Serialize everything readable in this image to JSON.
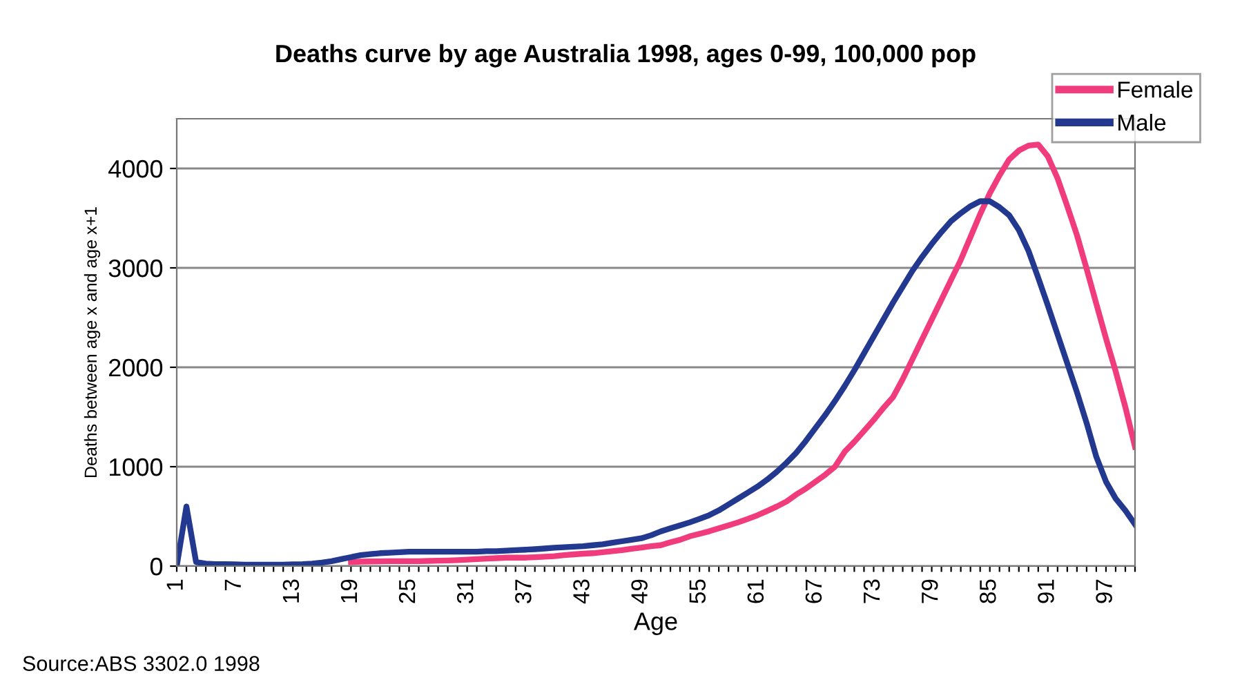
{
  "chart_data": {
    "type": "line",
    "title": "Deaths curve by age Australia 1998, ages 0-99, 100,000 pop",
    "xlabel": "Age",
    "ylabel": "Deaths between age x and age x+1",
    "categories": [
      "1",
      null,
      null,
      null,
      null,
      null,
      "7",
      null,
      null,
      null,
      null,
      null,
      "13",
      null,
      null,
      null,
      null,
      null,
      "19",
      null,
      null,
      null,
      null,
      null,
      "25",
      null,
      null,
      null,
      null,
      null,
      "31",
      null,
      null,
      null,
      null,
      null,
      "37",
      null,
      null,
      null,
      null,
      null,
      "43",
      null,
      null,
      null,
      null,
      null,
      "49",
      null,
      null,
      null,
      null,
      null,
      "55",
      null,
      null,
      null,
      null,
      null,
      "61",
      null,
      null,
      null,
      null,
      null,
      "67",
      null,
      null,
      null,
      null,
      null,
      "73",
      null,
      null,
      null,
      null,
      null,
      "79",
      null,
      null,
      null,
      null,
      null,
      "85",
      null,
      null,
      null,
      null,
      null,
      "91",
      null,
      null,
      null,
      null,
      null,
      "97",
      null,
      null,
      null
    ],
    "series": [
      {
        "name": "Female",
        "color": "#f03c7c",
        "values": [
          null,
          null,
          null,
          null,
          null,
          null,
          null,
          null,
          null,
          null,
          null,
          null,
          null,
          null,
          null,
          null,
          null,
          null,
          40,
          45,
          47,
          48,
          50,
          50,
          50,
          50,
          52,
          55,
          57,
          60,
          65,
          70,
          75,
          80,
          85,
          85,
          85,
          90,
          95,
          100,
          110,
          118,
          125,
          130,
          140,
          150,
          160,
          175,
          186,
          200,
          210,
          240,
          265,
          300,
          325,
          350,
          380,
          410,
          440,
          475,
          512,
          555,
          600,
          650,
          720,
          780,
          850,
          920,
          1000,
          1150,
          1250,
          1360,
          1470,
          1590,
          1700,
          1880,
          2080,
          2280,
          2480,
          2680,
          2880,
          3080,
          3310,
          3540,
          3750,
          3930,
          4090,
          4180,
          4230,
          4240,
          4120,
          3900,
          3620,
          3330,
          2990,
          2640,
          2290,
          1960,
          1600,
          1200
        ]
      },
      {
        "name": "Male",
        "color": "#23388f",
        "values": [
          0,
          600,
          40,
          25,
          20,
          20,
          18,
          15,
          15,
          15,
          15,
          15,
          18,
          20,
          25,
          35,
          50,
          70,
          90,
          110,
          120,
          130,
          135,
          140,
          145,
          145,
          145,
          145,
          145,
          145,
          145,
          145,
          150,
          150,
          155,
          160,
          165,
          170,
          177,
          185,
          190,
          195,
          200,
          210,
          220,
          235,
          250,
          265,
          280,
          310,
          349,
          380,
          410,
          440,
          475,
          512,
          560,
          620,
          680,
          740,
          800,
          870,
          950,
          1040,
          1140,
          1260,
          1390,
          1520,
          1660,
          1810,
          1970,
          2140,
          2310,
          2480,
          2650,
          2810,
          2970,
          3110,
          3240,
          3360,
          3470,
          3550,
          3620,
          3670,
          3670,
          3610,
          3530,
          3380,
          3170,
          2900,
          2620,
          2330,
          2040,
          1750,
          1440,
          1100,
          850,
          680,
          560,
          420
        ]
      }
    ],
    "ylim": [
      0,
      4500
    ],
    "yticks": [
      0,
      1000,
      2000,
      3000,
      4000
    ],
    "grid": "y",
    "legend": "top right",
    "marker": "none",
    "line_style": "solid",
    "annotations": [
      "Source:ABS 3302.0 1998"
    ]
  }
}
